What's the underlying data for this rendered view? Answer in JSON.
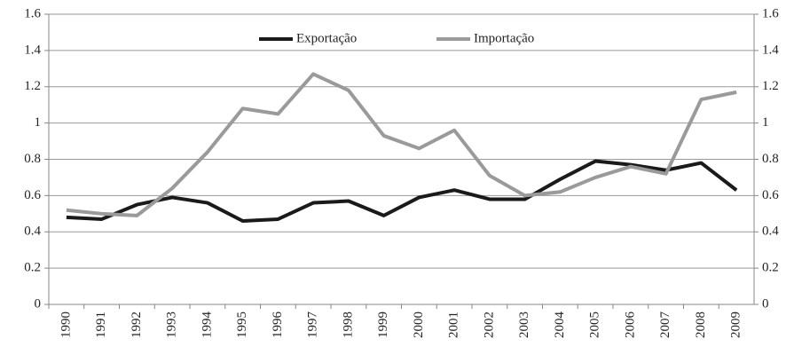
{
  "chart_data": {
    "type": "line",
    "categories": [
      "1990",
      "1991",
      "1992",
      "1993",
      "1994",
      "1995",
      "1996",
      "1997",
      "1998",
      "1999",
      "2000",
      "2001",
      "2002",
      "2003",
      "2004",
      "2005",
      "2006",
      "2007",
      "2008",
      "2009"
    ],
    "series": [
      {
        "name": "Exportação",
        "color": "#1a1a1a",
        "values": [
          0.48,
          0.47,
          0.55,
          0.59,
          0.56,
          0.46,
          0.47,
          0.56,
          0.57,
          0.49,
          0.59,
          0.63,
          0.58,
          0.58,
          0.69,
          0.79,
          0.77,
          0.74,
          0.78,
          0.63
        ]
      },
      {
        "name": "Importação",
        "color": "#9a9a9a",
        "values": [
          0.52,
          0.5,
          0.49,
          0.64,
          0.84,
          1.08,
          1.05,
          1.27,
          1.18,
          0.93,
          0.86,
          0.96,
          0.71,
          0.6,
          0.62,
          0.7,
          0.76,
          0.72,
          1.13,
          1.17
        ]
      }
    ],
    "ylim": [
      0,
      1.6
    ],
    "yticks": [
      0,
      0.2,
      0.4,
      0.6,
      0.8,
      1,
      1.2,
      1.4,
      1.6
    ],
    "y2lim": [
      0,
      1.6
    ],
    "y2ticks": [
      0,
      0.2,
      0.4,
      0.6,
      0.8,
      1,
      1.2,
      1.4,
      1.6
    ],
    "grid": true,
    "legend": "top"
  }
}
